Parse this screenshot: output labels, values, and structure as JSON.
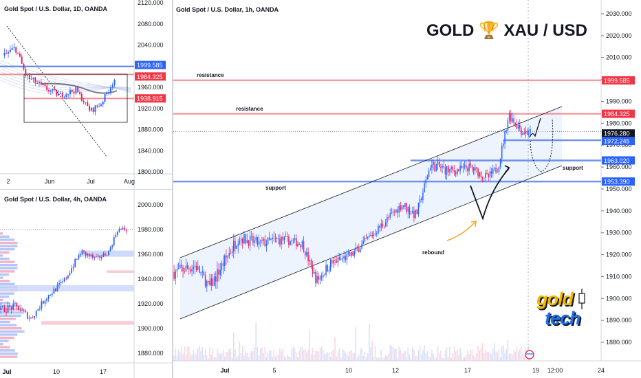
{
  "colors": {
    "up": "#2962ff",
    "down": "#e91e63",
    "res_line": "#f28b90",
    "sup_line": "#5b7fe8",
    "blue_tag": "#2962ff",
    "red_tag": "#f23645",
    "dark_tag": "#131722",
    "channel_fill": "#e3ecfb",
    "gold": "#f5b800",
    "tech_blue": "#1e6fe8"
  },
  "left_top": {
    "title": "Gold Spot / U.S. Dollar, 1D, OANDA",
    "price_ticks": [
      "2120.000",
      "2080.000",
      "2040.000",
      "1960.000",
      "1920.000",
      "1880.000",
      "1840.000",
      "1800.000"
    ],
    "time_ticks": [
      "2",
      "Jun",
      "Jul",
      "Aug"
    ],
    "tags": [
      {
        "label": "1999.585",
        "color": "blue"
      },
      {
        "label": "1984.325",
        "color": "red"
      },
      {
        "label": "1938.915",
        "color": "red"
      }
    ]
  },
  "left_bottom": {
    "title": "Gold Spot / U.S. Dollar, 4h, OANDA",
    "price_ticks": [
      "2000.000",
      "1980.000",
      "1960.000",
      "1940.000",
      "1920.000",
      "1900.000",
      "1880.000"
    ],
    "time_ticks": [
      "Jul",
      "10",
      "17"
    ]
  },
  "main": {
    "title": "Gold Spot / U.S. Dollar, 1h, OANDA",
    "brand_title": "GOLD 🏆 XAU / USD",
    "price_ticks": [
      "2030.000",
      "2020.000",
      "2010.000",
      "2000.000",
      "1990.000",
      "1980.000",
      "1970.000",
      "1960.000",
      "1950.000",
      "1940.000",
      "1930.000",
      "1920.000",
      "1910.000",
      "1900.000",
      "1890.000",
      "1880.000"
    ],
    "time_ticks": [
      "Jul",
      "5",
      "10",
      "12",
      "17",
      "19",
      "12:00",
      "24"
    ],
    "tags": [
      {
        "label": "1999.585",
        "color": "red"
      },
      {
        "label": "1984.325",
        "color": "red"
      },
      {
        "label": "1976.280",
        "color": "dark"
      },
      {
        "label": "1972.245",
        "color": "blue"
      },
      {
        "label": "1963.020",
        "color": "blue"
      },
      {
        "label": "1953.390",
        "color": "blue"
      }
    ],
    "annotations": {
      "resistance_upper": "resistance",
      "resistance_lower": "resistance",
      "support_left": "support",
      "support_right": "support",
      "rebound": "rebound"
    },
    "logo": {
      "gold": "gold",
      "tech": "tech"
    }
  },
  "chart_data": [
    {
      "type": "candlestick",
      "title": "Gold Spot / U.S. Dollar, 1h, OANDA",
      "ylim": [
        1870,
        2035
      ],
      "levels": [
        {
          "value": 1999.585,
          "label": "resistance"
        },
        {
          "value": 1984.325,
          "label": "resistance"
        },
        {
          "value": 1972.245
        },
        {
          "value": 1963.02
        },
        {
          "value": 1953.39,
          "label": "support"
        }
      ],
      "last_price": 1976.28,
      "channel": "ascending",
      "annotations": [
        "rebound"
      ]
    },
    {
      "type": "candlestick",
      "title": "Gold Spot / U.S. Dollar, 1D, OANDA",
      "ylim": [
        1790,
        2125
      ],
      "levels": [
        1999.585,
        1984.325,
        1938.915
      ]
    },
    {
      "type": "candlestick",
      "title": "Gold Spot / U.S. Dollar, 4h, OANDA",
      "ylim": [
        1875,
        2005
      ]
    }
  ]
}
